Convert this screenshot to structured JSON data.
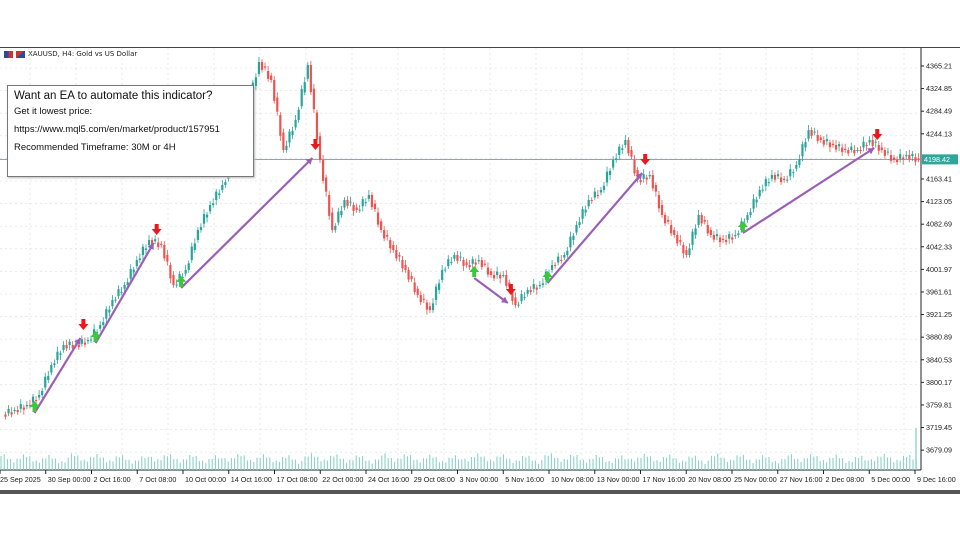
{
  "window": {
    "symbol_title": "XAUUSD, H4:  Gold vs US Dollar"
  },
  "info_box": {
    "line1": "Want an EA to automate this indicator?",
    "line2": "Get it lowest price:",
    "line3": "https://www.mql5.com/en/market/product/157951",
    "line4": "Recommended Timeframe: 30M or 4H"
  },
  "colors": {
    "bull": "#26a69a",
    "bear": "#ef5350",
    "buy_arrow": "#3cc83c",
    "sell_arrow": "#e8191c",
    "trend_line": "#9b5fb8",
    "price_line": "#2fa59c",
    "volume": "#7fcfc6"
  },
  "chart_data": {
    "type": "candlestick",
    "symbol": "XAUUSD",
    "timeframe": "H4",
    "ylim": [
      3660,
      4385
    ],
    "y_ticks": [
      4365.21,
      4324.85,
      4284.49,
      4244.13,
      4163.41,
      4123.05,
      4082.69,
      4042.33,
      4001.97,
      3961.61,
      3921.25,
      3880.89,
      3840.53,
      3800.17,
      3759.81,
      3719.45,
      3679.09
    ],
    "current_price": "4198.42",
    "x_ticks": [
      "25 Sep 2025",
      "30 Sep 00:00",
      "2 Oct 16:00",
      "7 Oct 08:00",
      "10 Oct 00:00",
      "14 Oct 16:00",
      "17 Oct 08:00",
      "22 Oct 00:00",
      "24 Oct 16:00",
      "29 Oct 08:00",
      "3 Nov 00:00",
      "5 Nov 16:00",
      "10 Nov 08:00",
      "13 Nov 00:00",
      "17 Nov 16:00",
      "20 Nov 08:00",
      "25 Nov 00:00",
      "27 Nov 16:00",
      "2 Dec 08:00",
      "5 Dec 00:00",
      "9 Dec 16:00"
    ],
    "closes": [
      3750.8,
      3759.7,
      3777.6,
      3831.2,
      3866.9,
      3866.9,
      3875.8,
      3902.6,
      3947.3,
      3974.1,
      4018.7,
      4054.4,
      4045.5,
      3974.1,
      4001.0,
      4072.3,
      4116.9,
      4152.7,
      4197.3,
      4286.6,
      4372.4,
      4340.2,
      4215.2,
      4268.8,
      4367.0,
      4197.3,
      4072.3,
      4125.9,
      4108.0,
      4134.8,
      4072.3,
      4036.6,
      4001.0,
      3956.2,
      3929.4,
      4001.0,
      4027.7,
      4009.8,
      4018.7,
      3992.0,
      3992.0,
      3938.4,
      3965.1,
      3974.1,
      4009.8,
      4027.7,
      4081.2,
      4125.9,
      4143.8,
      4197.3,
      4233.0,
      4161.6,
      4170.5,
      4099.1,
      4063.4,
      4027.7,
      4099.1,
      4063.4,
      4054.4,
      4063.4,
      4099.1,
      4143.8,
      4170.5,
      4161.6,
      4188.4,
      4250.9,
      4233.0,
      4224.1,
      4215.2,
      4215.2,
      4233.0,
      4215.2,
      4197.3,
      4206.3,
      4198.4
    ],
    "buy_signals": [
      2,
      7,
      14,
      38,
      44,
      60
    ],
    "sell_signals": [
      6,
      12,
      25,
      41,
      52,
      71
    ]
  }
}
